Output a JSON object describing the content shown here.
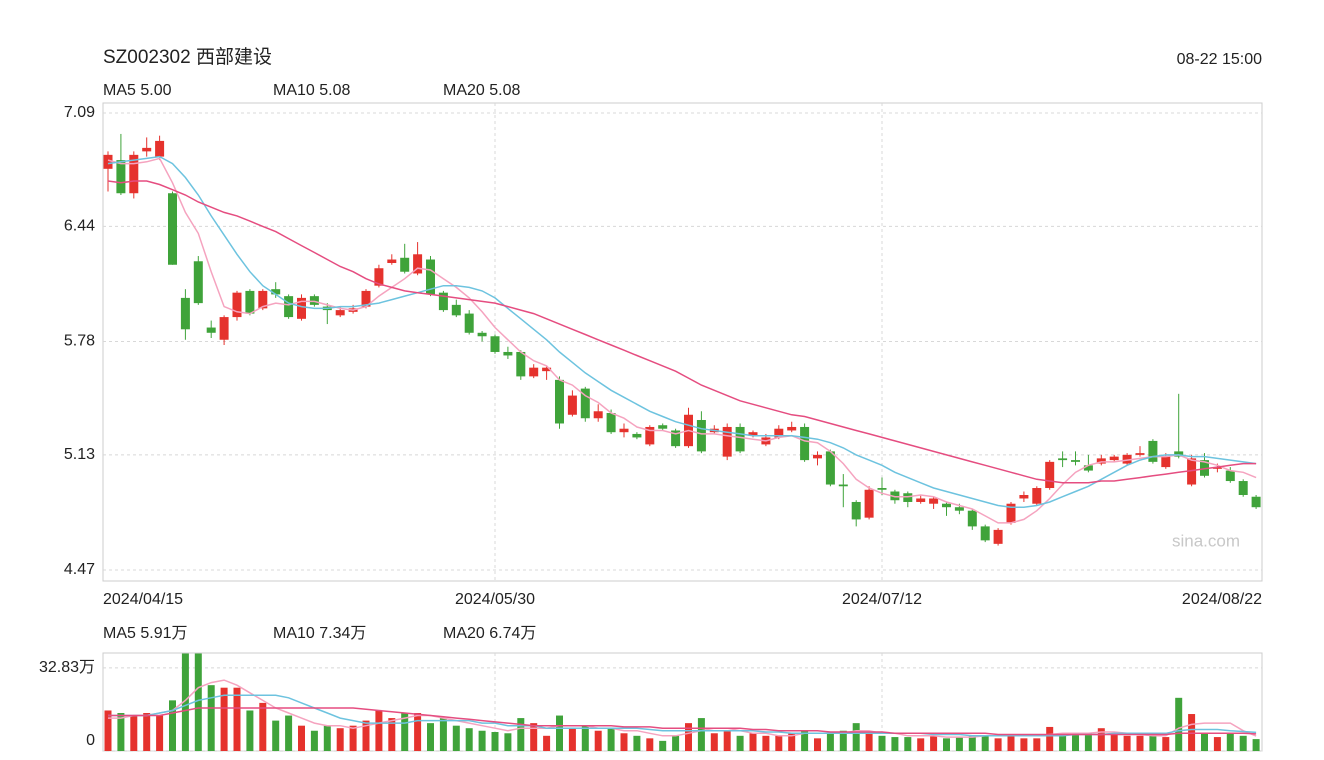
{
  "chart_data": [
    {
      "type": "candlestick",
      "title": "SZ002302 西部建设",
      "timestamp": "08-22 15:00",
      "watermark": "sina.com",
      "up_color": "#e5322d",
      "down_color": "#3fa33a",
      "grid": true,
      "categories": [
        "2024/04/15",
        null,
        null,
        null,
        null,
        null,
        null,
        null,
        null,
        null,
        null,
        null,
        null,
        null,
        null,
        null,
        null,
        null,
        null,
        null,
        null,
        null,
        null,
        null,
        null,
        null,
        null,
        null,
        null,
        null,
        "2024/05/30",
        null,
        null,
        null,
        null,
        null,
        null,
        null,
        null,
        null,
        null,
        null,
        null,
        null,
        null,
        null,
        null,
        null,
        null,
        null,
        null,
        null,
        null,
        null,
        null,
        null,
        null,
        null,
        null,
        null,
        "2024/07/12",
        null,
        null,
        null,
        null,
        null,
        null,
        null,
        null,
        null,
        null,
        null,
        null,
        null,
        null,
        null,
        null,
        null,
        null,
        null,
        null,
        null,
        null,
        null,
        null,
        null,
        null,
        null,
        null,
        "2024/08/22"
      ],
      "open": [
        6.77,
        6.82,
        6.63,
        6.87,
        6.84,
        6.63,
        6.03,
        6.24,
        5.86,
        5.79,
        5.92,
        6.07,
        5.97,
        6.08,
        6.04,
        5.91,
        6.04,
        5.98,
        5.93,
        5.95,
        5.98,
        6.1,
        6.23,
        6.26,
        6.17,
        6.25,
        6.06,
        5.99,
        5.94,
        5.83,
        5.81,
        5.72,
        5.72,
        5.58,
        5.61,
        5.56,
        5.36,
        5.51,
        5.34,
        5.37,
        5.26,
        5.25,
        5.19,
        5.3,
        5.27,
        5.18,
        5.33,
        5.26,
        5.12,
        5.29,
        5.24,
        5.19,
        5.23,
        5.27,
        5.29,
        5.11,
        5.15,
        4.96,
        4.86,
        4.77,
        4.94,
        4.92,
        4.91,
        4.86,
        4.85,
        4.85,
        4.83,
        4.81,
        4.72,
        4.62,
        4.74,
        4.88,
        4.85,
        4.94,
        5.11,
        5.1,
        5.07,
        5.08,
        5.1,
        5.08,
        5.13,
        5.21,
        5.06,
        5.15,
        4.96,
        5.1,
        5.05,
        5.04,
        4.98,
        4.89
      ],
      "high": [
        6.87,
        6.97,
        6.87,
        6.95,
        6.96,
        6.64,
        6.08,
        6.27,
        5.9,
        5.93,
        6.07,
        6.08,
        6.08,
        6.12,
        6.05,
        6.05,
        6.05,
        6.0,
        5.98,
        5.99,
        6.08,
        6.22,
        6.28,
        6.34,
        6.35,
        6.27,
        6.07,
        6.02,
        5.96,
        5.84,
        5.82,
        5.75,
        5.73,
        5.65,
        5.64,
        5.58,
        5.5,
        5.52,
        5.42,
        5.39,
        5.31,
        5.26,
        5.3,
        5.31,
        5.28,
        5.4,
        5.38,
        5.3,
        5.31,
        5.31,
        5.27,
        5.25,
        5.3,
        5.32,
        5.31,
        5.15,
        5.16,
        5.02,
        4.87,
        4.95,
        5.0,
        4.93,
        4.92,
        4.9,
        4.89,
        4.86,
        4.85,
        4.82,
        4.73,
        4.71,
        4.86,
        4.92,
        4.95,
        5.1,
        5.15,
        5.15,
        5.13,
        5.13,
        5.13,
        5.14,
        5.18,
        5.22,
        5.14,
        5.48,
        5.13,
        5.14,
        5.08,
        5.06,
        4.99,
        4.9
      ],
      "low": [
        6.64,
        6.62,
        6.6,
        6.84,
        6.82,
        6.22,
        5.79,
        5.99,
        5.8,
        5.76,
        5.9,
        5.93,
        5.96,
        6.03,
        5.91,
        5.9,
        5.98,
        5.88,
        5.92,
        5.94,
        5.97,
        6.09,
        6.22,
        6.17,
        6.16,
        6.04,
        5.95,
        5.92,
        5.82,
        5.78,
        5.71,
        5.68,
        5.56,
        5.57,
        5.56,
        5.28,
        5.35,
        5.32,
        5.32,
        5.25,
        5.23,
        5.22,
        5.18,
        5.27,
        5.17,
        5.17,
        5.14,
        5.25,
        5.1,
        5.14,
        5.23,
        5.18,
        5.22,
        5.26,
        5.09,
        5.07,
        4.95,
        4.83,
        4.72,
        4.76,
        4.9,
        4.85,
        4.83,
        4.85,
        4.82,
        4.78,
        4.79,
        4.7,
        4.63,
        4.61,
        4.73,
        4.86,
        4.84,
        4.93,
        5.06,
        5.07,
        5.03,
        5.07,
        5.09,
        5.07,
        5.12,
        5.08,
        5.05,
        5.11,
        4.95,
        5.0,
        5.03,
        4.97,
        4.89,
        4.82
      ],
      "close": [
        6.85,
        6.63,
        6.85,
        6.89,
        6.93,
        6.22,
        5.85,
        6.0,
        5.83,
        5.92,
        6.06,
        5.94,
        6.07,
        6.05,
        5.92,
        6.03,
        5.99,
        5.96,
        5.96,
        5.97,
        6.07,
        6.2,
        6.25,
        6.18,
        6.28,
        6.05,
        5.96,
        5.93,
        5.83,
        5.81,
        5.72,
        5.7,
        5.58,
        5.63,
        5.63,
        5.31,
        5.47,
        5.34,
        5.38,
        5.26,
        5.28,
        5.23,
        5.29,
        5.28,
        5.18,
        5.36,
        5.15,
        5.28,
        5.29,
        5.15,
        5.26,
        5.23,
        5.28,
        5.29,
        5.1,
        5.13,
        4.96,
        4.95,
        4.76,
        4.93,
        4.93,
        4.87,
        4.86,
        4.88,
        4.88,
        4.83,
        4.81,
        4.72,
        4.64,
        4.7,
        4.85,
        4.9,
        4.94,
        5.09,
        5.1,
        5.09,
        5.04,
        5.11,
        5.12,
        5.13,
        5.14,
        5.09,
        5.12,
        5.12,
        5.11,
        5.01,
        5.06,
        4.98,
        4.9,
        4.83
      ],
      "series": [
        {
          "name": "MA5 5.00",
          "color": "#f5a3bf",
          "values": [
            6.82,
            6.8,
            6.8,
            6.81,
            6.83,
            6.69,
            6.52,
            6.4,
            6.18,
            5.98,
            5.95,
            5.94,
            5.98,
            6.0,
            5.99,
            6.01,
            6.01,
            5.99,
            5.97,
            5.96,
            5.98,
            6.04,
            6.09,
            6.14,
            6.2,
            6.19,
            6.14,
            6.09,
            6.03,
            5.95,
            5.86,
            5.79,
            5.72,
            5.67,
            5.64,
            5.56,
            5.53,
            5.47,
            5.43,
            5.37,
            5.34,
            5.29,
            5.27,
            5.27,
            5.25,
            5.27,
            5.25,
            5.25,
            5.24,
            5.23,
            5.22,
            5.21,
            5.23,
            5.24,
            5.21,
            5.2,
            5.15,
            5.08,
            4.99,
            4.94,
            4.91,
            4.89,
            4.89,
            4.9,
            4.89,
            4.86,
            4.84,
            4.82,
            4.78,
            4.74,
            4.74,
            4.76,
            4.81,
            4.88,
            4.96,
            5.03,
            5.07,
            5.09,
            5.09,
            5.1,
            5.11,
            5.12,
            5.12,
            5.13,
            5.1,
            5.09,
            5.07,
            5.04,
            5.03,
            5.0
          ]
        },
        {
          "name": "MA10 5.08",
          "color": "#6dc3df",
          "values": [
            6.8,
            6.81,
            6.82,
            6.83,
            6.84,
            6.8,
            6.72,
            6.62,
            6.5,
            6.39,
            6.28,
            6.18,
            6.1,
            6.05,
            6.0,
            5.98,
            5.97,
            5.97,
            5.98,
            5.98,
            5.99,
            6.0,
            6.02,
            6.04,
            6.06,
            6.08,
            6.1,
            6.1,
            6.09,
            6.07,
            6.03,
            5.97,
            5.91,
            5.85,
            5.79,
            5.72,
            5.66,
            5.6,
            5.55,
            5.5,
            5.46,
            5.42,
            5.38,
            5.35,
            5.32,
            5.3,
            5.28,
            5.27,
            5.26,
            5.25,
            5.24,
            5.24,
            5.24,
            5.24,
            5.23,
            5.22,
            5.2,
            5.17,
            5.13,
            5.1,
            5.07,
            5.03,
            5.0,
            4.97,
            4.94,
            4.92,
            4.9,
            4.88,
            4.86,
            4.84,
            4.83,
            4.83,
            4.84,
            4.86,
            4.89,
            4.92,
            4.95,
            4.99,
            5.03,
            5.07,
            5.1,
            5.12,
            5.13,
            5.13,
            5.12,
            5.12,
            5.11,
            5.1,
            5.09,
            5.08
          ]
        },
        {
          "name": "MA20 5.08",
          "color": "#e54d80",
          "values": [
            6.7,
            6.69,
            6.7,
            6.7,
            6.68,
            6.65,
            6.62,
            6.58,
            6.55,
            6.52,
            6.5,
            6.47,
            6.44,
            6.41,
            6.37,
            6.33,
            6.29,
            6.25,
            6.21,
            6.18,
            6.14,
            6.11,
            6.09,
            6.07,
            6.06,
            6.05,
            6.04,
            6.03,
            6.02,
            6.01,
            6.0,
            5.98,
            5.96,
            5.94,
            5.91,
            5.88,
            5.85,
            5.82,
            5.79,
            5.76,
            5.73,
            5.7,
            5.67,
            5.64,
            5.61,
            5.57,
            5.53,
            5.5,
            5.47,
            5.44,
            5.42,
            5.4,
            5.38,
            5.36,
            5.35,
            5.33,
            5.31,
            5.29,
            5.27,
            5.25,
            5.23,
            5.21,
            5.19,
            5.17,
            5.15,
            5.13,
            5.11,
            5.09,
            5.07,
            5.05,
            5.03,
            5.01,
            4.99,
            4.98,
            4.97,
            4.97,
            4.97,
            4.98,
            4.98,
            4.99,
            5.0,
            5.01,
            5.02,
            5.03,
            5.04,
            5.05,
            5.06,
            5.07,
            5.08,
            5.08
          ]
        }
      ],
      "ylim": [
        4.47,
        7.09
      ],
      "yticks": [
        4.47,
        5.13,
        5.78,
        6.44,
        7.09
      ]
    },
    {
      "type": "bar",
      "grid": true,
      "values": [
        16,
        15,
        14,
        15,
        14,
        20,
        38.5,
        38.5,
        26,
        25,
        25,
        16,
        19,
        12,
        14,
        10,
        8,
        10,
        9,
        10,
        12,
        16,
        13,
        15,
        15,
        11,
        13,
        10,
        9,
        8,
        7.5,
        7,
        13,
        11,
        6,
        14,
        9,
        10,
        8,
        9,
        7,
        6,
        5,
        4,
        6,
        11,
        13,
        7,
        8,
        6,
        7,
        6,
        6,
        7,
        8,
        5,
        7,
        8,
        11,
        7,
        6,
        5.5,
        5.5,
        5,
        6,
        5,
        5.5,
        6,
        6,
        5,
        6.7,
        5,
        5,
        9.5,
        6,
        6.7,
        7,
        9,
        6.7,
        6,
        6,
        6,
        5.5,
        21,
        14.6,
        7,
        5.5,
        7,
        6,
        4.7
      ],
      "series": [
        {
          "name": "MA5 5.91万",
          "color": "#f5a3bf",
          "values": [
            13,
            13,
            14,
            14,
            15,
            16,
            20,
            25,
            27,
            28,
            26,
            23,
            20,
            17,
            15,
            13,
            11,
            10,
            10,
            9,
            10,
            11,
            12,
            13,
            14,
            14,
            13,
            12,
            11,
            10,
            9,
            8,
            9,
            9,
            9,
            10,
            10,
            10,
            9,
            9,
            8,
            8,
            7,
            6,
            6,
            7,
            8,
            9,
            9,
            8,
            7,
            7,
            6,
            6,
            7,
            7,
            7,
            7,
            8,
            8,
            7,
            7,
            6,
            6,
            6,
            5.5,
            5.5,
            5.5,
            6,
            6,
            6,
            6,
            6,
            6.5,
            7,
            7,
            7,
            7.5,
            7.5,
            7,
            6.5,
            6,
            6,
            9,
            10.5,
            11,
            11,
            11,
            8,
            5.91
          ]
        },
        {
          "name": "MA10 7.34万",
          "color": "#6dc3df",
          "values": [
            14,
            14,
            14,
            14,
            15,
            16,
            18,
            20,
            21,
            22,
            22,
            22,
            22,
            22,
            21,
            19,
            17,
            15,
            13,
            12,
            11,
            11,
            11,
            11,
            12,
            12,
            12,
            12,
            12,
            11,
            11,
            10,
            10,
            10,
            9,
            9,
            9,
            9,
            9,
            9,
            9,
            9,
            8.5,
            8,
            8,
            8,
            8,
            8,
            8,
            8,
            8,
            7.5,
            7.5,
            7,
            7,
            7,
            7,
            7,
            7,
            7,
            7,
            7,
            7,
            7,
            6.5,
            6.5,
            6.5,
            6,
            6,
            6,
            6,
            6,
            6,
            6,
            6,
            6.5,
            6.5,
            6.5,
            7,
            7,
            7,
            7,
            7,
            8,
            8.5,
            8.5,
            8.5,
            8,
            7.7,
            7.34
          ]
        },
        {
          "name": "MA20 6.74万",
          "color": "#e54d80",
          "values": [
            14,
            14,
            14,
            14,
            14,
            15,
            16,
            17,
            17,
            17,
            17,
            17,
            17,
            17,
            17,
            17,
            17,
            17,
            17,
            17,
            16.5,
            16,
            15.5,
            15,
            14.5,
            14,
            13.5,
            13,
            12.5,
            12,
            11.5,
            11,
            10.5,
            10,
            10,
            10,
            10,
            10,
            10,
            10,
            9.5,
            9.5,
            9.5,
            9,
            9,
            9,
            9,
            9,
            9,
            9,
            8.5,
            8.5,
            8,
            8,
            8,
            8,
            7.5,
            7.5,
            7.5,
            7.5,
            7.5,
            7,
            7,
            7,
            7,
            7,
            7,
            7,
            7,
            6.5,
            6.5,
            6.5,
            6.5,
            6.5,
            6.5,
            6.5,
            6.5,
            6.5,
            6.5,
            6.5,
            6.5,
            6.5,
            6.5,
            7,
            7,
            7,
            7,
            7,
            7,
            6.74
          ]
        }
      ],
      "ylim": [
        0,
        38.7
      ],
      "yticks": [
        0,
        {
          "value": 32.83,
          "label": "32.83万"
        }
      ]
    }
  ]
}
